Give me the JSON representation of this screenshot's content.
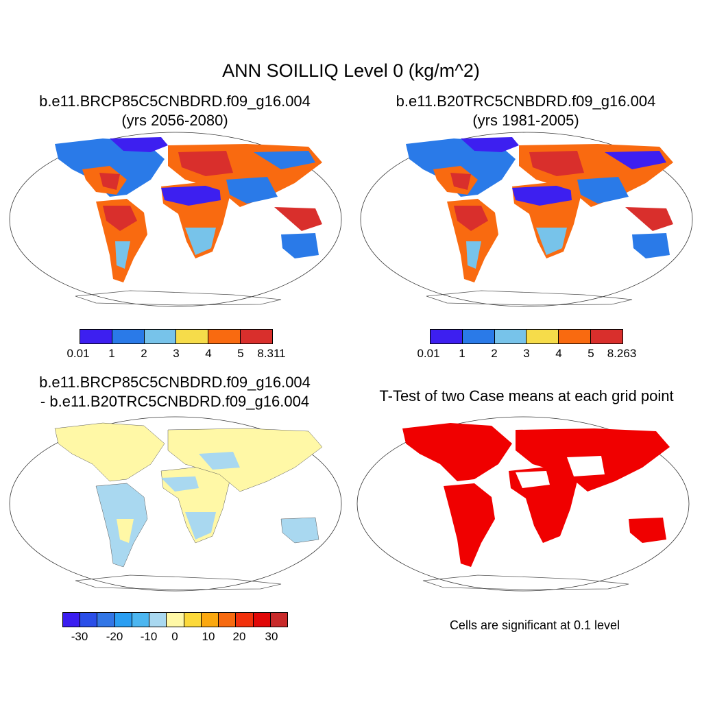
{
  "main_title": "ANN SOILLIQ Level 0 (kg/m^2)",
  "panels": [
    {
      "line1": "b.e11.BRCP85C5CNBDRD.f09_g16.004",
      "line2": "(yrs 2056-2080)"
    },
    {
      "line1": "b.e11.B20TRC5CNBDRD.f09_g16.004",
      "line2": "(yrs 1981-2005)"
    },
    {
      "line1": "b.e11.BRCP85C5CNBDRD.f09_g16.004",
      "line2": "- b.e11.B20TRC5CNBDRD.f09_g16.004"
    },
    {
      "line1": "T-Test of two Case means at each grid point",
      "line2": ""
    }
  ],
  "colorbars": [
    {
      "colors": [
        "#3d1ff0",
        "#2a7ae8",
        "#77c3ea",
        "#f6dc4a",
        "#f96a10",
        "#d92f2c"
      ],
      "labels": [
        "0.01",
        "1",
        "2",
        "3",
        "4",
        "5",
        "8.311"
      ]
    },
    {
      "colors": [
        "#3d1ff0",
        "#2a7ae8",
        "#77c3ea",
        "#f6dc4a",
        "#f96a10",
        "#d92f2c"
      ],
      "labels": [
        "0.01",
        "1",
        "2",
        "3",
        "4",
        "5",
        "8.263"
      ]
    },
    {
      "colors": [
        "#3b1ef0",
        "#2a4ee8",
        "#3276e6",
        "#2a9ef2",
        "#4cb6f0",
        "#a9d8f0",
        "#fff8a6",
        "#fcd93a",
        "#fba80f",
        "#f76a10",
        "#f2310c",
        "#e10808",
        "#c82a2a"
      ],
      "labels": [
        "-30",
        "-20",
        "-10",
        "0",
        "10",
        "20",
        "30"
      ]
    }
  ],
  "significance_note": "Cells are significant at 0.1 level"
}
